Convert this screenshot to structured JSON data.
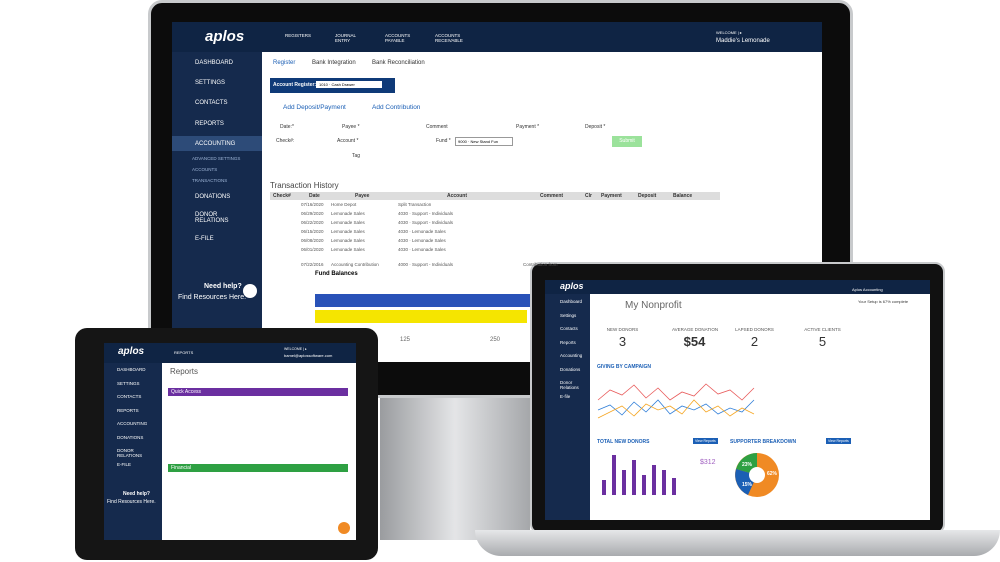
{
  "desktop": {
    "logo": "aplos",
    "top_nav": [
      "REGISTERS",
      "JOURNAL ENTRY",
      "ACCOUNTS PAYABLE",
      "ACCOUNTS RECEIVABLE"
    ],
    "welcome": "WELCOME | ▸",
    "org": "Maddie's Lemonade",
    "sidebar": [
      "DASHBOARD",
      "SETTINGS",
      "CONTACTS",
      "REPORTS",
      "ACCOUNTING",
      "ADVANCED SETTINGS",
      "ACCOUNTS",
      "TRANSACTIONS",
      "DONATIONS",
      "DONOR RELATIONS",
      "E-FILE"
    ],
    "help": "Need help?",
    "help_link": "Find Resources Here.",
    "tabs": [
      "Register",
      "Bank Integration",
      "Bank Reconciliation"
    ],
    "account_register_label": "Account Register:",
    "account_register_value": "1010 · Cash Drawer",
    "actions": [
      "Add Deposit/Payment",
      "Add Contribution"
    ],
    "form_labels": [
      "Date:*",
      "Payee *",
      "Comment",
      "Payment *",
      "Deposit *",
      "Check#:",
      "Account *",
      "Fund *",
      "Tag"
    ],
    "fund_value": "9000 · New Stand Fun",
    "submit": "Submit",
    "history_title": "Transaction History",
    "table": {
      "columns": [
        "Check#",
        "Date",
        "Payee",
        "Account",
        "Comment",
        "Clr",
        "Payment",
        "Deposit",
        "Balance"
      ],
      "rows": [
        [
          "07/16/2020",
          "Home Depot",
          "Split Transaction",
          ""
        ],
        [
          "06/29/2020",
          "Lemonade Sales",
          "4030 · Support - Individuals",
          ""
        ],
        [
          "06/22/2020",
          "Lemonade Sales",
          "4030 · Support - Individuals",
          ""
        ],
        [
          "06/15/2020",
          "Lemonade Sales",
          "4030 · Lemonade Sales",
          ""
        ],
        [
          "06/08/2020",
          "Lemonade Sales",
          "4030 · Lemonade Sales",
          ""
        ],
        [
          "06/01/2020",
          "Lemonade Sales",
          "4030 · Lemonade Sales",
          ""
        ],
        [
          "07/22/2016",
          "Accounting Contribution",
          "4000 · Support - Individuals",
          "Contribution from"
        ]
      ]
    },
    "fund_title": "Fund Balances",
    "fund_ticks": [
      "125",
      "250"
    ]
  },
  "tablet": {
    "logo": "aplos",
    "section": "REPORTS",
    "welcome": "WELCOME | ▸",
    "email": "bamel@aplossoftware.com",
    "sidebar": [
      "DASHBOARD",
      "SETTINGS",
      "CONTACTS",
      "REPORTS",
      "ACCOUNTING",
      "DONATIONS",
      "DONOR RELATIONS",
      "E-FILE"
    ],
    "title": "Reports",
    "quick_access": "Quick Access",
    "financial": "Financial",
    "help": "Need help?",
    "help_link": "Find Resources Here."
  },
  "laptop": {
    "logo": "aplos",
    "sidebar": [
      "Dashboard",
      "Settings",
      "Contacts",
      "Reports",
      "Accounting",
      "Donations",
      "Donor Relations",
      "E-file"
    ],
    "org": "My Nonprofit",
    "account": "Aplos Accounting",
    "setup": "Your Setup is 67% complete",
    "stats": [
      {
        "label": "NEW DONORS",
        "value": "3"
      },
      {
        "label": "AVERAGE DONATION",
        "value": "$54"
      },
      {
        "label": "LAPSED DONORS",
        "value": "2"
      },
      {
        "label": "ACTIVE CLIENTS",
        "value": "5"
      }
    ],
    "giving": "GIVING BY CAMPAIGN",
    "new_donors": "TOTAL NEW DONORS",
    "breakdown": "SUPPORTER BREAKDOWN",
    "view_reports": "View Reports",
    "pie_labels": [
      "23%",
      "62%",
      "15%"
    ],
    "donor_total": "$312"
  }
}
